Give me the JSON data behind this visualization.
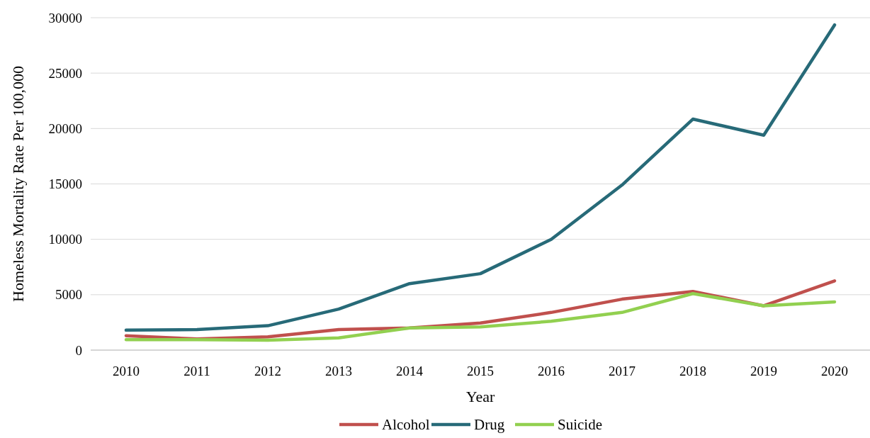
{
  "chart_data": {
    "type": "line",
    "xlabel": "Year",
    "ylabel": "Homeless Mortality Rate Per 100,000",
    "categories": [
      "2010",
      "2011",
      "2012",
      "2013",
      "2014",
      "2015",
      "2016",
      "2017",
      "2018",
      "2019",
      "2020"
    ],
    "series": [
      {
        "name": "Alcohol",
        "color": "#c0504d",
        "values": [
          1300,
          1000,
          1200,
          1850,
          2000,
          2450,
          3400,
          4600,
          5300,
          4000,
          6250
        ]
      },
      {
        "name": "Drug",
        "color": "#276a78",
        "values": [
          1800,
          1850,
          2200,
          3700,
          6000,
          6900,
          10000,
          14900,
          20850,
          19400,
          29350
        ]
      },
      {
        "name": "Suicide",
        "color": "#92d050",
        "values": [
          950,
          950,
          900,
          1100,
          2000,
          2100,
          2600,
          3400,
          5100,
          4000,
          4350
        ]
      }
    ],
    "ylim": [
      0,
      30000
    ],
    "yticks": [
      0,
      5000,
      10000,
      15000,
      20000,
      25000,
      30000
    ],
    "grid": "y",
    "legend": "bottom",
    "marker": "none",
    "line_style": "solid"
  }
}
